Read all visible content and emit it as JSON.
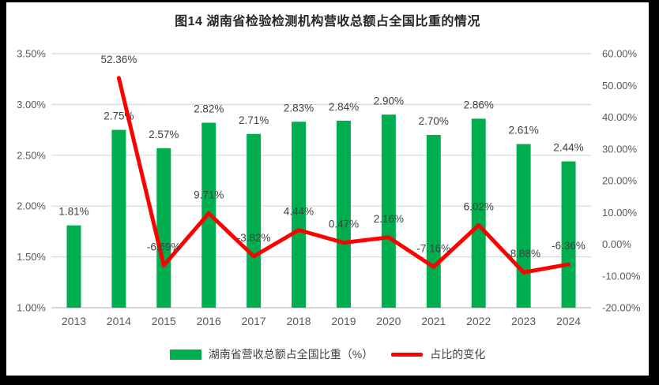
{
  "title": "图14 湖南省检验检测机构营收总额占全国比重的情况",
  "colors": {
    "bar": "#00AE50",
    "line": "#FF0000",
    "grid": "#D9D9D9",
    "axis_line": "#BFBFBF",
    "tick_text": "#595959",
    "label_text": "#404040",
    "frame": "#000000",
    "background": "#FFFFFF"
  },
  "legend": [
    {
      "label": "湖南省营收总额占全国比重（%）",
      "swatch": "bar"
    },
    {
      "label": "占比的变化",
      "swatch": "line"
    }
  ],
  "chart_data": {
    "type": "bar",
    "subtype": "combo-bar-line",
    "title": "图14 湖南省检验检测机构营收总额占全国比重的情况",
    "categories": [
      "2013",
      "2014",
      "2015",
      "2016",
      "2017",
      "2018",
      "2019",
      "2020",
      "2021",
      "2022",
      "2023",
      "2024"
    ],
    "series": [
      {
        "name": "湖南省营收总额占全国比重（%）",
        "type": "bar",
        "axis": "left",
        "values": [
          1.81,
          2.75,
          2.57,
          2.82,
          2.71,
          2.83,
          2.84,
          2.9,
          2.7,
          2.86,
          2.61,
          2.44
        ],
        "labels": [
          "1.81%",
          "2.75%",
          "2.57%",
          "2.82%",
          "2.71%",
          "2.83%",
          "2.84%",
          "2.90%",
          "2.70%",
          "2.86%",
          "2.61%",
          "2.44%"
        ]
      },
      {
        "name": "占比的变化",
        "type": "line",
        "axis": "right",
        "values": [
          null,
          52.36,
          -6.69,
          9.71,
          -3.82,
          4.44,
          0.47,
          2.16,
          -7.16,
          6.02,
          -8.88,
          -6.36
        ],
        "labels": [
          null,
          "52.36%",
          "-6.69%",
          "9.71%",
          "-3.82%",
          "4.44%",
          "0.47%",
          "2.16%",
          "-7.16%",
          "6.02%",
          "-8.88%",
          "-6.36%"
        ]
      }
    ],
    "left_axis": {
      "min": 1.0,
      "max": 3.5,
      "ticks": [
        "3.50%",
        "3.00%",
        "2.50%",
        "2.00%",
        "1.50%",
        "1.00%"
      ]
    },
    "right_axis": {
      "min": -20,
      "max": 60,
      "ticks": [
        "60.00%",
        "50.00%",
        "40.00%",
        "30.00%",
        "20.00%",
        "10.00%",
        "0.00%",
        "-10.00%",
        "-20.00%"
      ]
    },
    "grid": true,
    "legend_position": "bottom"
  }
}
